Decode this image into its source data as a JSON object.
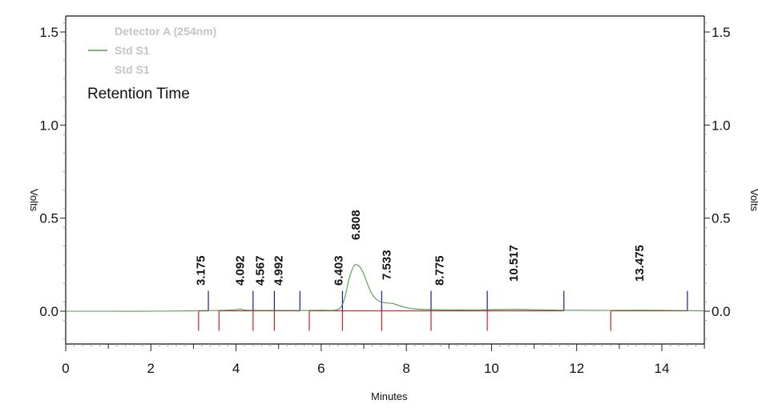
{
  "chart_data": {
    "type": "line",
    "title": "",
    "xlabel": "Minutes",
    "ylabel": "Volts",
    "ylabel_right": "Volts",
    "xlim": [
      0,
      15
    ],
    "ylim": [
      -0.18,
      1.58
    ],
    "x_ticks": [
      0,
      2,
      4,
      6,
      8,
      10,
      12,
      14
    ],
    "x_tick_labels": [
      "0",
      "2",
      "4",
      "6",
      "8",
      "10",
      "12",
      "14"
    ],
    "y_ticks": [
      0.0,
      0.5,
      1.0,
      1.5
    ],
    "y_tick_labels": [
      "0.0",
      "0.5",
      "1.0",
      "1.5"
    ],
    "grid": false,
    "legend": {
      "position": "top-left",
      "entries": [
        {
          "label": "Detector A (254nm)",
          "color": "#c4c4c4",
          "line": false
        },
        {
          "label": "Std S1",
          "color": "#2e8b2e",
          "line": true
        },
        {
          "label": "Std S1",
          "color": "#c4c4c4",
          "line": false
        }
      ],
      "annotation": "Retention Time"
    },
    "series": [
      {
        "name": "Std S1",
        "color": "#2e8b2e",
        "x": [
          0,
          1,
          2,
          3,
          3.175,
          3.6,
          4.0,
          4.09,
          4.2,
          4.567,
          4.992,
          5.5,
          6.0,
          6.403,
          6.55,
          6.65,
          6.75,
          6.808,
          6.9,
          7.0,
          7.1,
          7.2,
          7.35,
          7.533,
          7.7,
          7.9,
          8.2,
          8.775,
          9.5,
          10.517,
          11.0,
          11.7,
          12.5,
          13.475,
          14.6,
          15
        ],
        "y": [
          0.0,
          0.0,
          0.0,
          0.002,
          0.003,
          0.004,
          0.008,
          0.012,
          0.006,
          0.004,
          0.004,
          0.004,
          0.005,
          0.01,
          0.07,
          0.17,
          0.235,
          0.25,
          0.24,
          0.2,
          0.14,
          0.09,
          0.055,
          0.045,
          0.04,
          0.025,
          0.012,
          0.008,
          0.007,
          0.01,
          0.008,
          0.005,
          0.004,
          0.005,
          0.003,
          0.002
        ]
      }
    ],
    "peaks": [
      {
        "label": "3.175",
        "rt": 3.175
      },
      {
        "label": "4.092",
        "rt": 4.092
      },
      {
        "label": "4.567",
        "rt": 4.567
      },
      {
        "label": "4.992",
        "rt": 4.992
      },
      {
        "label": "6.403",
        "rt": 6.403
      },
      {
        "label": "6.808",
        "rt": 6.808
      },
      {
        "label": "7.533",
        "rt": 7.533
      },
      {
        "label": "8.775",
        "rt": 8.775
      },
      {
        "label": "10.517",
        "rt": 10.517
      },
      {
        "label": "13.475",
        "rt": 13.475
      }
    ],
    "integration_baselines": [
      {
        "start": 3.12,
        "end": 3.35
      },
      {
        "start": 3.6,
        "end": 4.4
      },
      {
        "start": 4.4,
        "end": 4.9
      },
      {
        "start": 4.9,
        "end": 5.5
      },
      {
        "start": 5.72,
        "end": 6.5
      },
      {
        "start": 6.5,
        "end": 7.42
      },
      {
        "start": 7.42,
        "end": 8.58
      },
      {
        "start": 8.58,
        "end": 9.9
      },
      {
        "start": 9.9,
        "end": 11.7
      },
      {
        "start": 12.8,
        "end": 14.6
      }
    ],
    "baseline_start_marker_color": "#cc2222",
    "baseline_end_marker_color": "#1a1aa0"
  },
  "labels": {
    "xlabel": "Minutes",
    "ylabel_left": "Volts",
    "ylabel_right": "Volts",
    "legend_detector": "Detector A (254nm)",
    "legend_series1": "Std S1",
    "legend_series2": "Std S1",
    "retention_title": "Retention Time"
  }
}
